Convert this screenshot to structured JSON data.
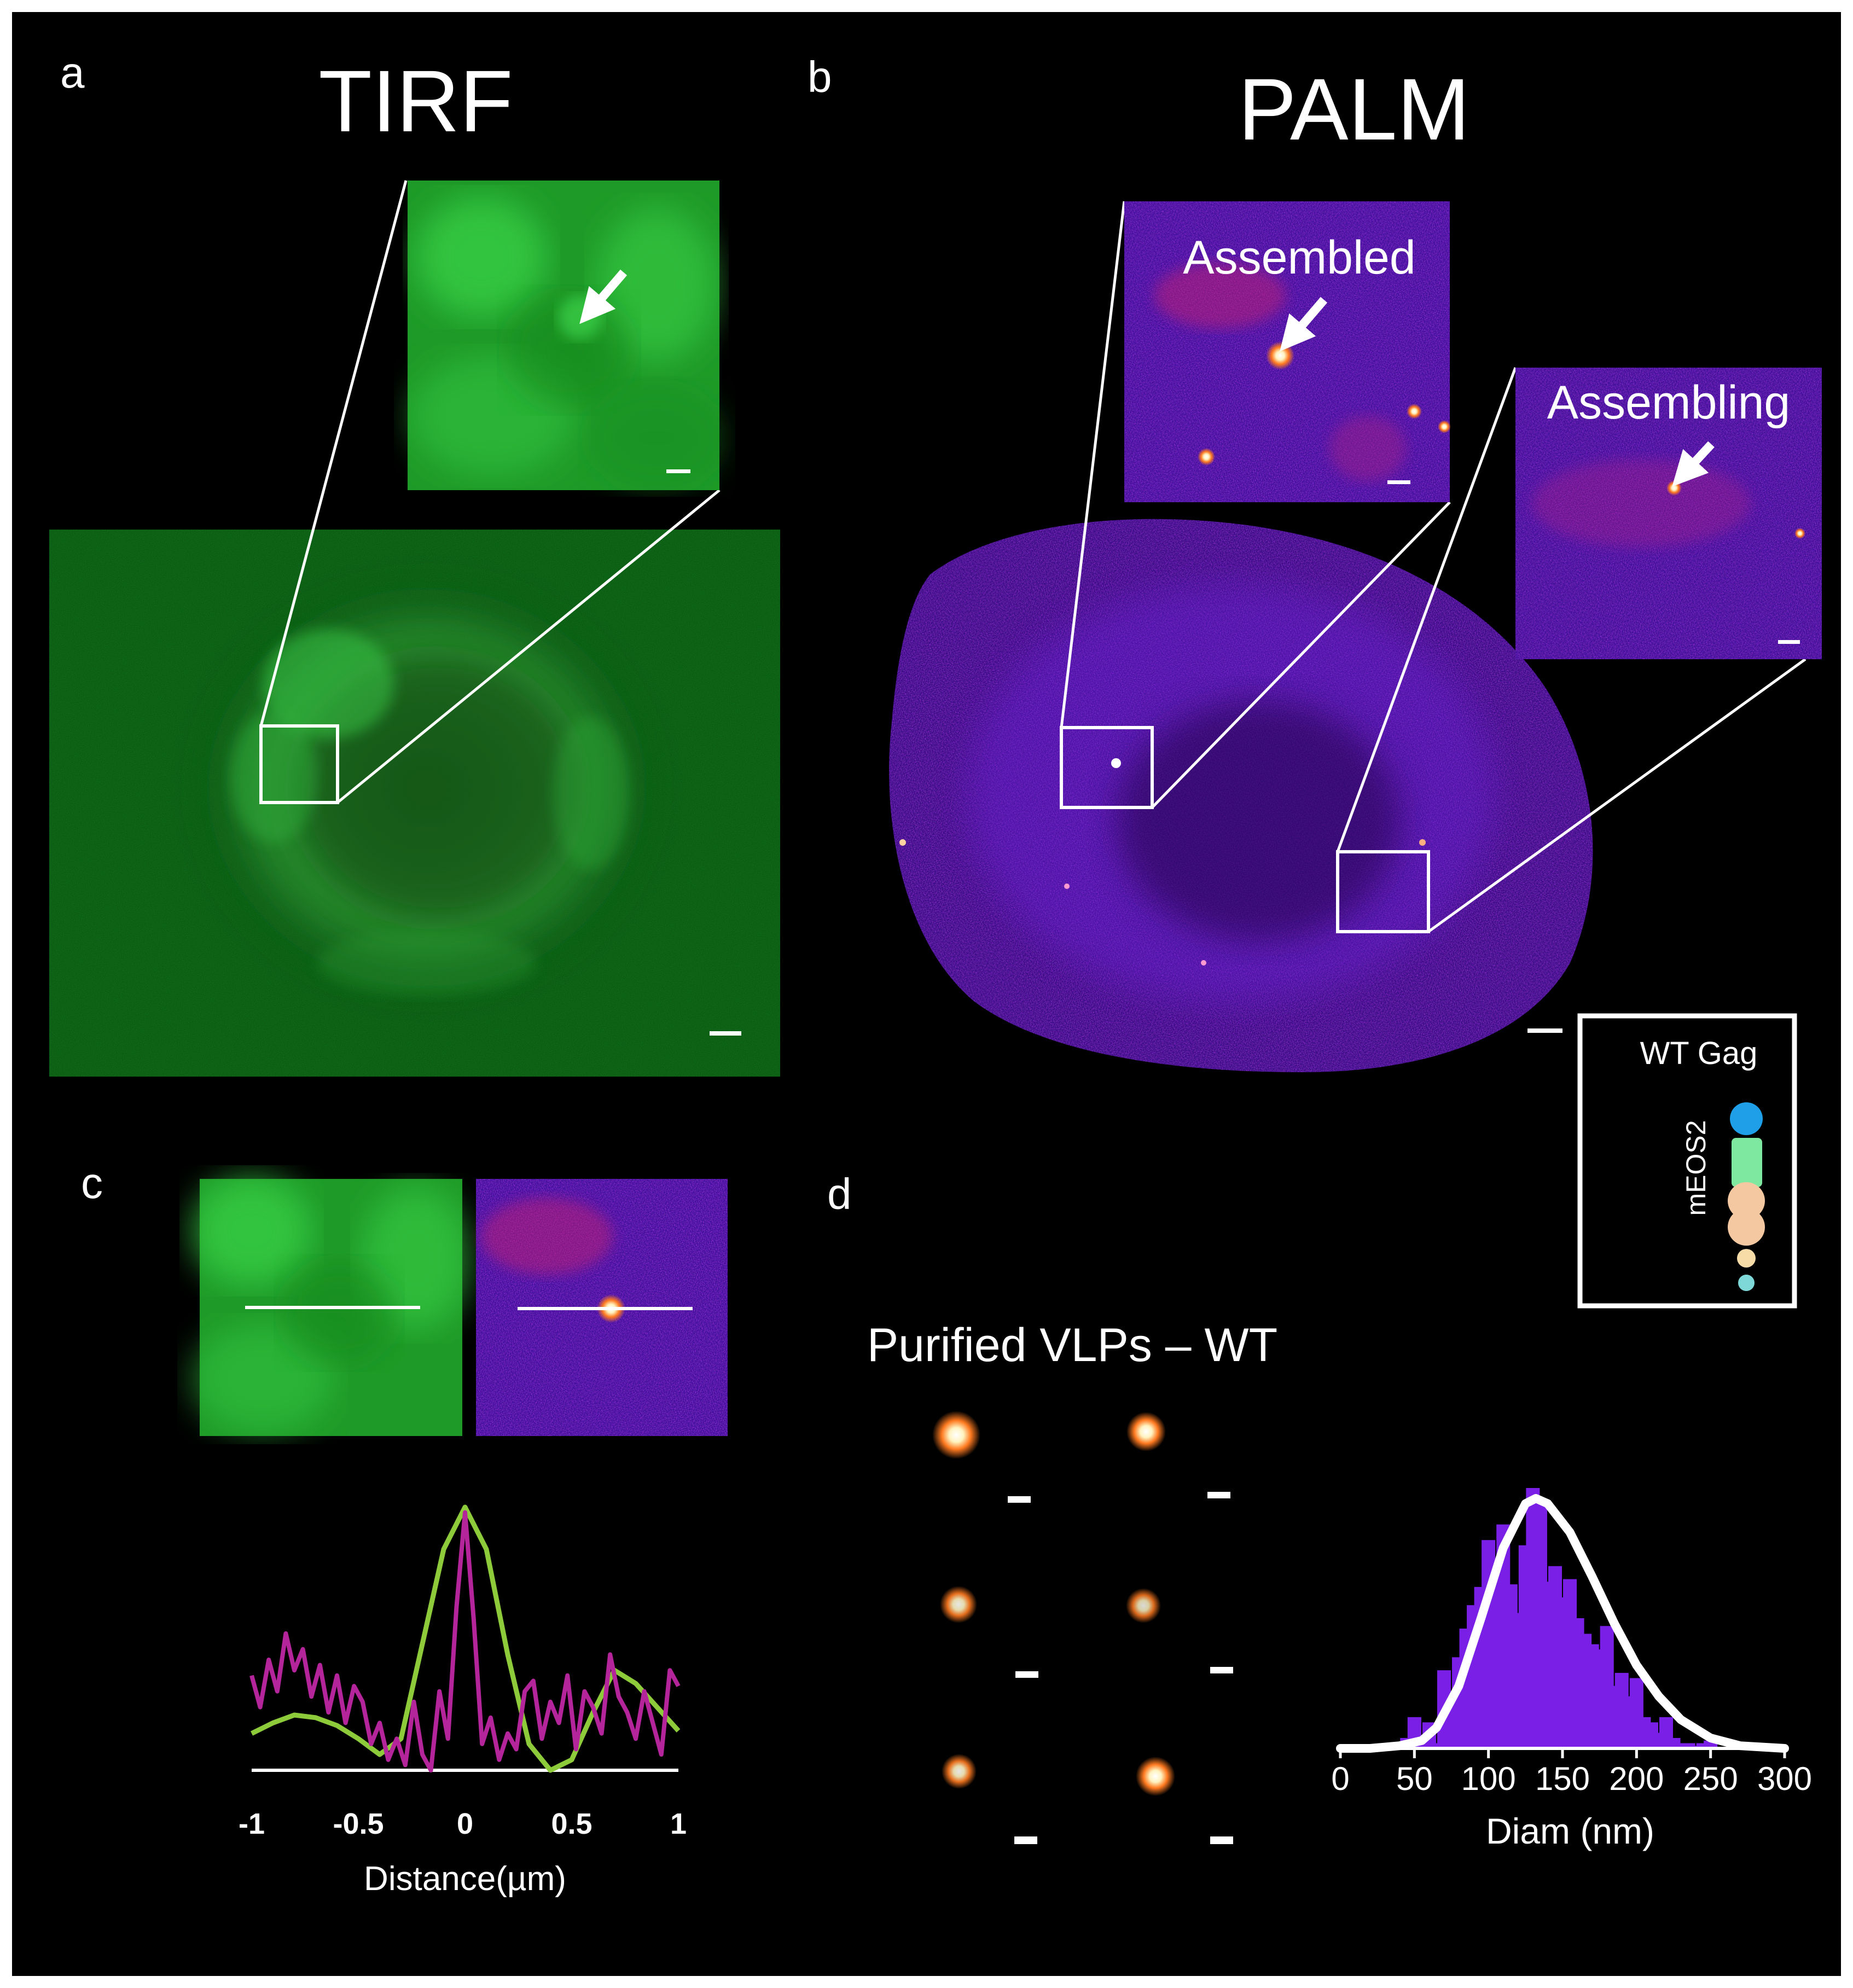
{
  "panel_letters": {
    "a": "a",
    "b": "b",
    "c": "c",
    "d": "d"
  },
  "panel_a": {
    "title": "TIRF"
  },
  "panel_b": {
    "title": "PALM",
    "inset_assembled_label": "Assembled",
    "inset_assembling_label": "Assembling",
    "construct_legend": {
      "title": "WT Gag",
      "tag_label": "mEOS2",
      "domain_colors": [
        "#1e9fe8",
        "#7ee8a0",
        "#f4c8a0",
        "#f4c8a0",
        "#f8dca8",
        "#7fd8d8"
      ]
    }
  },
  "panel_d": {
    "caption": "Purified VLPs – WT"
  },
  "colors": {
    "tirf_green": "#1a8a22",
    "palm_purple": "#5b12c8",
    "profile_tirf": "#8ecb3a",
    "profile_palm": "#b4249a",
    "hist_bar": "#7a1fe6"
  },
  "chart_data": [
    {
      "type": "line",
      "xlabel": "Distance(µm)",
      "ylabel": "",
      "xlim": [
        -1,
        1
      ],
      "xticks": [
        "-1",
        "-0.5",
        "0",
        "0.5",
        "1"
      ],
      "ylim": [
        0,
        1
      ],
      "series": [
        {
          "x": [
            -1,
            -0.9,
            -0.8,
            -0.7,
            -0.6,
            -0.5,
            -0.4,
            -0.3,
            -0.2,
            -0.1,
            0,
            0.1,
            0.2,
            0.3,
            0.4,
            0.5,
            0.6,
            0.7,
            0.8,
            0.9,
            1
          ],
          "y": [
            0.14,
            0.18,
            0.21,
            0.2,
            0.17,
            0.12,
            0.06,
            0.12,
            0.48,
            0.84,
            1.0,
            0.84,
            0.44,
            0.1,
            0.0,
            0.04,
            0.22,
            0.38,
            0.33,
            0.24,
            0.15
          ]
        },
        {
          "x": [
            -1,
            -0.96,
            -0.92,
            -0.88,
            -0.84,
            -0.8,
            -0.76,
            -0.72,
            -0.68,
            -0.64,
            -0.6,
            -0.56,
            -0.52,
            -0.48,
            -0.44,
            -0.4,
            -0.36,
            -0.32,
            -0.28,
            -0.24,
            -0.2,
            -0.16,
            -0.12,
            -0.08,
            -0.04,
            0,
            0.04,
            0.08,
            0.12,
            0.16,
            0.2,
            0.24,
            0.28,
            0.32,
            0.36,
            0.4,
            0.44,
            0.48,
            0.52,
            0.56,
            0.6,
            0.64,
            0.68,
            0.72,
            0.76,
            0.8,
            0.84,
            0.88,
            0.92,
            0.96,
            1
          ],
          "y": [
            0.36,
            0.24,
            0.42,
            0.3,
            0.52,
            0.38,
            0.46,
            0.28,
            0.4,
            0.22,
            0.36,
            0.18,
            0.32,
            0.26,
            0.1,
            0.18,
            0.04,
            0.12,
            0.02,
            0.26,
            0.06,
            0.0,
            0.3,
            0.12,
            0.62,
            0.98,
            0.58,
            0.1,
            0.2,
            0.04,
            0.14,
            0.08,
            0.3,
            0.34,
            0.12,
            0.26,
            0.18,
            0.36,
            0.08,
            0.3,
            0.24,
            0.14,
            0.44,
            0.28,
            0.22,
            0.12,
            0.3,
            0.18,
            0.06,
            0.38,
            0.32
          ]
        }
      ]
    },
    {
      "type": "bar",
      "xlabel": "Diam (nm)",
      "ylabel": "",
      "xlim": [
        0,
        300
      ],
      "xticks": [
        "0",
        "50",
        "100",
        "150",
        "200",
        "250",
        "300"
      ],
      "ylim": [
        0,
        1
      ],
      "bins": [
        45,
        50,
        55,
        60,
        65,
        70,
        75,
        80,
        85,
        90,
        95,
        100,
        105,
        110,
        115,
        120,
        125,
        130,
        135,
        140,
        145,
        150,
        155,
        160,
        165,
        170,
        175,
        180,
        185,
        190,
        195,
        200,
        205,
        210,
        215,
        220,
        225,
        230,
        235,
        240,
        245,
        250
      ],
      "bin_width": 10,
      "values": [
        0.04,
        0.12,
        0.03,
        0.1,
        0.02,
        0.3,
        0.18,
        0.35,
        0.46,
        0.55,
        0.62,
        0.8,
        0.72,
        0.86,
        0.63,
        0.52,
        0.78,
        1.0,
        0.95,
        0.64,
        0.7,
        0.58,
        0.65,
        0.5,
        0.44,
        0.4,
        0.38,
        0.47,
        0.24,
        0.29,
        0.2,
        0.27,
        0.12,
        0.1,
        0.06,
        0.12,
        0.04,
        0.02,
        0.02,
        0.01,
        0.02,
        0.03
      ],
      "fit": {
        "x": [
          0,
          20,
          40,
          55,
          65,
          80,
          95,
          110,
          125,
          132,
          140,
          155,
          170,
          185,
          200,
          215,
          230,
          250,
          270,
          300
        ],
        "y": [
          0.0,
          0.0,
          0.01,
          0.03,
          0.08,
          0.24,
          0.5,
          0.77,
          0.94,
          0.96,
          0.94,
          0.83,
          0.66,
          0.48,
          0.32,
          0.2,
          0.11,
          0.04,
          0.01,
          0.0
        ]
      }
    }
  ]
}
